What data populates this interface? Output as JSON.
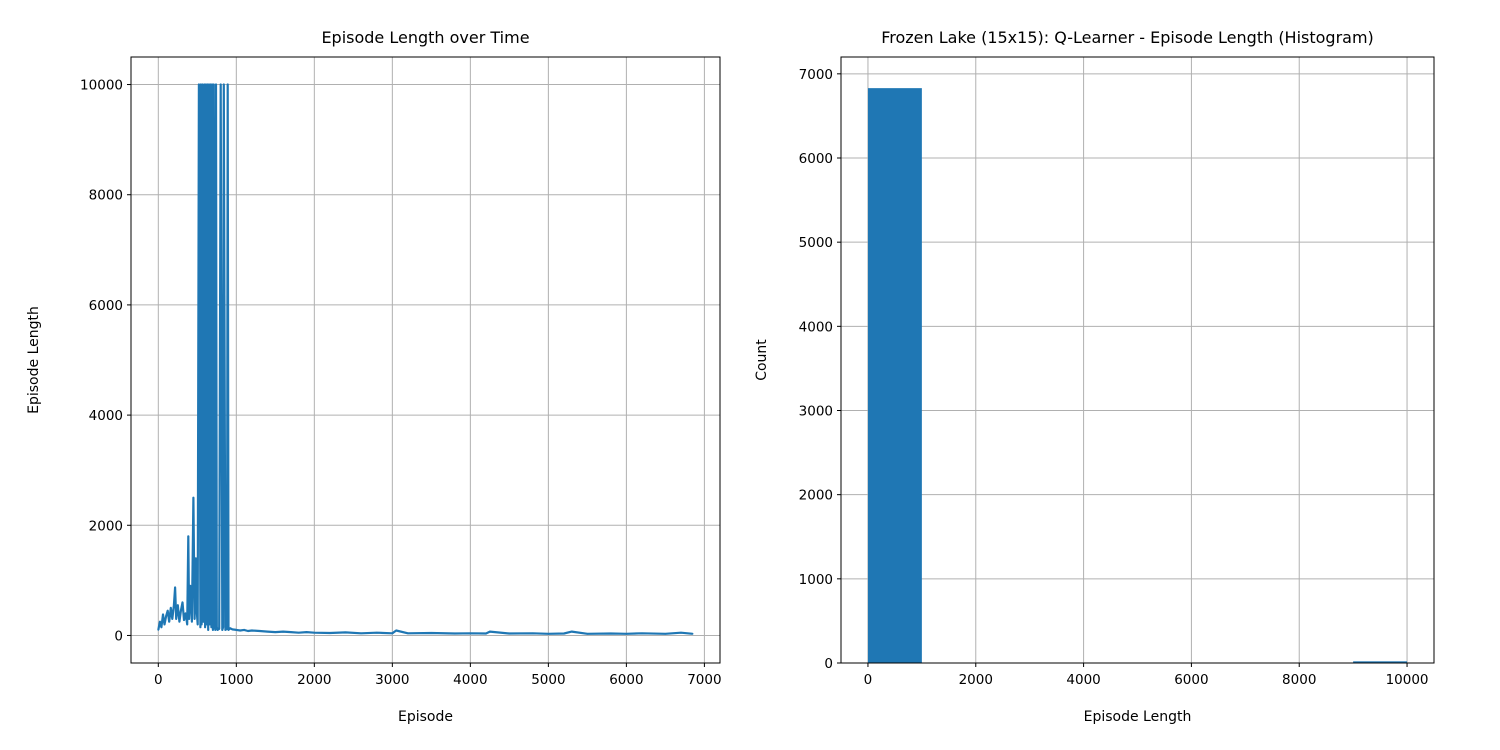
{
  "chart_data": [
    {
      "type": "line",
      "title": "Episode Length over Time",
      "xlabel": "Episode",
      "ylabel": "Episode Length",
      "xlim": [
        -350,
        7200
      ],
      "ylim": [
        -500,
        10500
      ],
      "xticks": [
        0,
        1000,
        2000,
        3000,
        4000,
        5000,
        6000,
        7000
      ],
      "yticks": [
        0,
        2000,
        4000,
        6000,
        8000,
        10000
      ],
      "grid": true,
      "color": "#1f77b4",
      "series": [
        {
          "x": [
            0,
            20,
            40,
            60,
            80,
            100,
            120,
            140,
            160,
            180,
            200,
            215,
            230,
            250,
            270,
            290,
            310,
            330,
            350,
            370,
            385,
            395,
            410,
            430,
            450,
            465,
            480,
            495,
            505,
            520,
            540,
            545,
            555,
            565,
            575,
            590,
            600,
            610,
            620,
            630,
            640,
            650,
            660,
            670,
            680,
            690,
            700,
            710,
            720,
            730,
            740,
            750,
            760,
            780,
            800,
            820,
            830,
            840,
            860,
            880,
            890,
            900,
            920,
            950,
            1000,
            1050,
            1100,
            1150,
            1200,
            1300,
            1400,
            1500,
            1600,
            1700,
            1800,
            1900,
            2000,
            2200,
            2400,
            2600,
            2800,
            3000,
            3050,
            3200,
            3500,
            3800,
            4000,
            4200,
            4250,
            4500,
            4800,
            5000,
            5200,
            5300,
            5500,
            5800,
            6000,
            6200,
            6500,
            6700,
            6850
          ],
          "y": [
            100,
            250,
            150,
            380,
            200,
            350,
            450,
            250,
            500,
            300,
            550,
            870,
            300,
            550,
            250,
            450,
            600,
            280,
            400,
            200,
            1800,
            300,
            900,
            250,
            2500,
            300,
            1400,
            400,
            200,
            10000,
            150,
            10000,
            200,
            10000,
            250,
            10000,
            150,
            10000,
            200,
            10000,
            100,
            10000,
            200,
            10000,
            150,
            10000,
            100,
            10000,
            200,
            100,
            10000,
            150,
            100,
            120,
            10000,
            100,
            150,
            10000,
            100,
            120,
            10000,
            100,
            130,
            110,
            100,
            90,
            100,
            80,
            90,
            80,
            70,
            60,
            70,
            60,
            50,
            60,
            50,
            45,
            55,
            40,
            50,
            40,
            90,
            40,
            45,
            35,
            40,
            35,
            70,
            35,
            40,
            30,
            35,
            70,
            30,
            35,
            30,
            40,
            30,
            50,
            30
          ]
        }
      ]
    },
    {
      "type": "bar",
      "title": "Frozen Lake (15x15): Q-Learner - Episode Length (Histogram)",
      "xlabel": "Episode Length",
      "ylabel": "Count",
      "xlim": [
        -500,
        10500
      ],
      "ylim": [
        0,
        7200
      ],
      "xticks": [
        0,
        2000,
        4000,
        6000,
        8000,
        10000
      ],
      "yticks": [
        0,
        1000,
        2000,
        3000,
        4000,
        5000,
        6000,
        7000
      ],
      "grid": true,
      "color": "#1f77b4",
      "bins": [
        {
          "from": 0,
          "to": 1000,
          "count": 6830
        },
        {
          "from": 1000,
          "to": 2000,
          "count": 5
        },
        {
          "from": 2000,
          "to": 3000,
          "count": 3
        },
        {
          "from": 3000,
          "to": 4000,
          "count": 0
        },
        {
          "from": 4000,
          "to": 5000,
          "count": 0
        },
        {
          "from": 5000,
          "to": 6000,
          "count": 0
        },
        {
          "from": 6000,
          "to": 7000,
          "count": 0
        },
        {
          "from": 7000,
          "to": 8000,
          "count": 0
        },
        {
          "from": 8000,
          "to": 9000,
          "count": 0
        },
        {
          "from": 9000,
          "to": 10000,
          "count": 20
        }
      ]
    }
  ]
}
